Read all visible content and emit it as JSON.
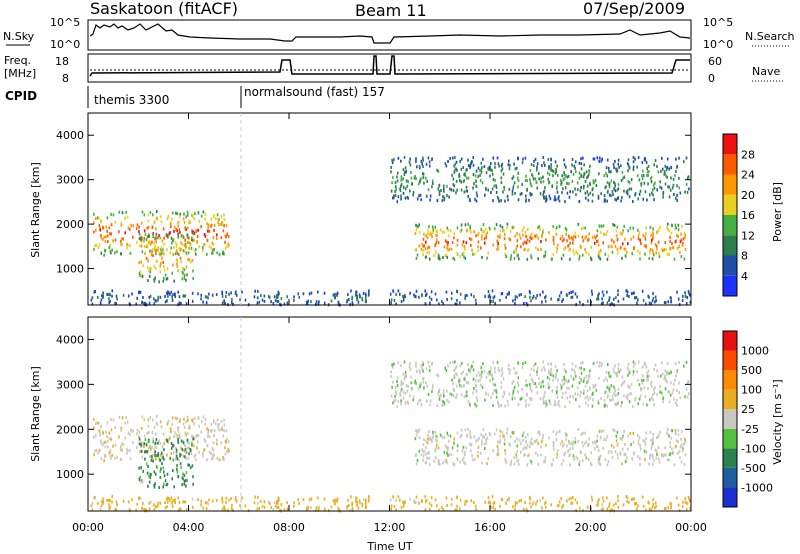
{
  "header": {
    "station": "Saskatoon (fitACF)",
    "beam": "Beam 11",
    "date": "07/Sep/2009"
  },
  "noise_panel": {
    "left_label": "N.Sky",
    "right_label": "N.Search",
    "left_ticks": [
      "10^5",
      "10^0"
    ],
    "right_ticks": [
      "10^5",
      "10^0"
    ]
  },
  "freq_panel": {
    "left_label_line1": "Freq.",
    "left_label_line2": "[MHz]",
    "right_label": "Nave",
    "left_ticks": [
      "18",
      "8"
    ],
    "right_ticks": [
      "60",
      "0"
    ]
  },
  "cpid": {
    "label": "CPID",
    "segments": [
      {
        "name": "themis 3300",
        "start_hour": 0
      },
      {
        "name": "normalsound (fast) 157",
        "start_hour": 6
      }
    ]
  },
  "power_panel": {
    "ylabel": "Slant Range [km]",
    "yticks": [
      "4000",
      "3000",
      "2000",
      "1000"
    ],
    "colorbar_label": "Power [dB]",
    "colorbar_ticks": [
      "28",
      "24",
      "20",
      "16",
      "12",
      "8",
      "4"
    ],
    "colors": [
      "#1e32ff",
      "#1f4fa8",
      "#2e7d4f",
      "#44b044",
      "#e8d020",
      "#ff9900",
      "#ff5a00",
      "#ee1010"
    ]
  },
  "velocity_panel": {
    "ylabel": "Slant Range [km]",
    "yticks": [
      "4000",
      "3000",
      "2000",
      "1000"
    ],
    "colorbar_label": "Velocity [m s⁻¹]",
    "colorbar_ticks": [
      "1000",
      "500",
      "100",
      "25",
      "-25",
      "-100",
      "-500",
      "-1000"
    ],
    "colors": [
      "#1a2fd0",
      "#1f5fa0",
      "#2e8050",
      "#55c040",
      "#c8c8c0",
      "#e8b020",
      "#ff8c00",
      "#ff4a00",
      "#e81010"
    ]
  },
  "x_axis": {
    "title": "Time UT",
    "ticks": [
      "00:00",
      "04:00",
      "08:00",
      "12:00",
      "16:00",
      "20:00",
      "00:00"
    ]
  },
  "chart_data": {
    "type": "heatmap",
    "x_range_hours": [
      0,
      24
    ],
    "y_range_km": [
      180,
      4500
    ],
    "scatter_regions": [
      {
        "name": "early echo band",
        "t": [
          0.2,
          5.6
        ],
        "range_km": [
          1300,
          2300
        ],
        "power_db": 26,
        "velocity": -10
      },
      {
        "name": "morning spur",
        "t": [
          2.0,
          4.2
        ],
        "range_km": [
          700,
          1800
        ],
        "power_db": 22,
        "velocity": 120
      },
      {
        "name": "afternoon main band",
        "t": [
          13.0,
          23.8
        ],
        "range_km": [
          1200,
          2000
        ],
        "power_db": 25,
        "velocity": 0
      },
      {
        "name": "far range",
        "t": [
          11.2,
          23.9
        ],
        "range_km": [
          2500,
          3500
        ],
        "power_db": 12,
        "velocity": 10
      },
      {
        "name": "ground scatter low ranges",
        "t": [
          0,
          24
        ],
        "range_km": [
          180,
          500
        ],
        "power_db": 8,
        "velocity": -50
      }
    ]
  }
}
